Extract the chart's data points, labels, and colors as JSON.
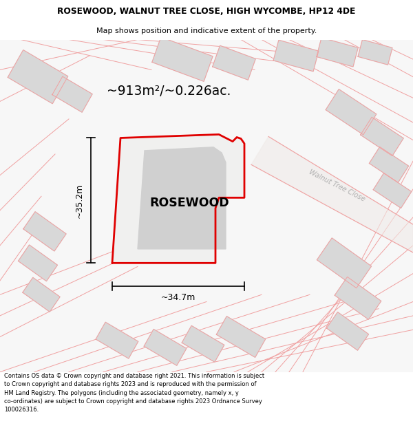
{
  "title_line1": "ROSEWOOD, WALNUT TREE CLOSE, HIGH WYCOMBE, HP12 4DE",
  "title_line2": "Map shows position and indicative extent of the property.",
  "area_label": "~913m²/~0.226ac.",
  "property_label": "ROSEWOOD",
  "width_label": "~34.7m",
  "height_label": "~35.2m",
  "street_label": "Walnut Tree Close",
  "footer_text": "Contains OS data © Crown copyright and database right 2021. This information is subject to Crown copyright and database rights 2023 and is reproduced with the permission of HM Land Registry. The polygons (including the associated geometry, namely x, y co-ordinates) are subject to Crown copyright and database rights 2023 Ordnance Survey 100026316.",
  "bg_color": "#f7f7f7",
  "red_line_color": "#e00000",
  "pink_line_color": "#f0a0a0",
  "gray_fill": "#d8d8d8",
  "light_gray": "#e8e8e8"
}
